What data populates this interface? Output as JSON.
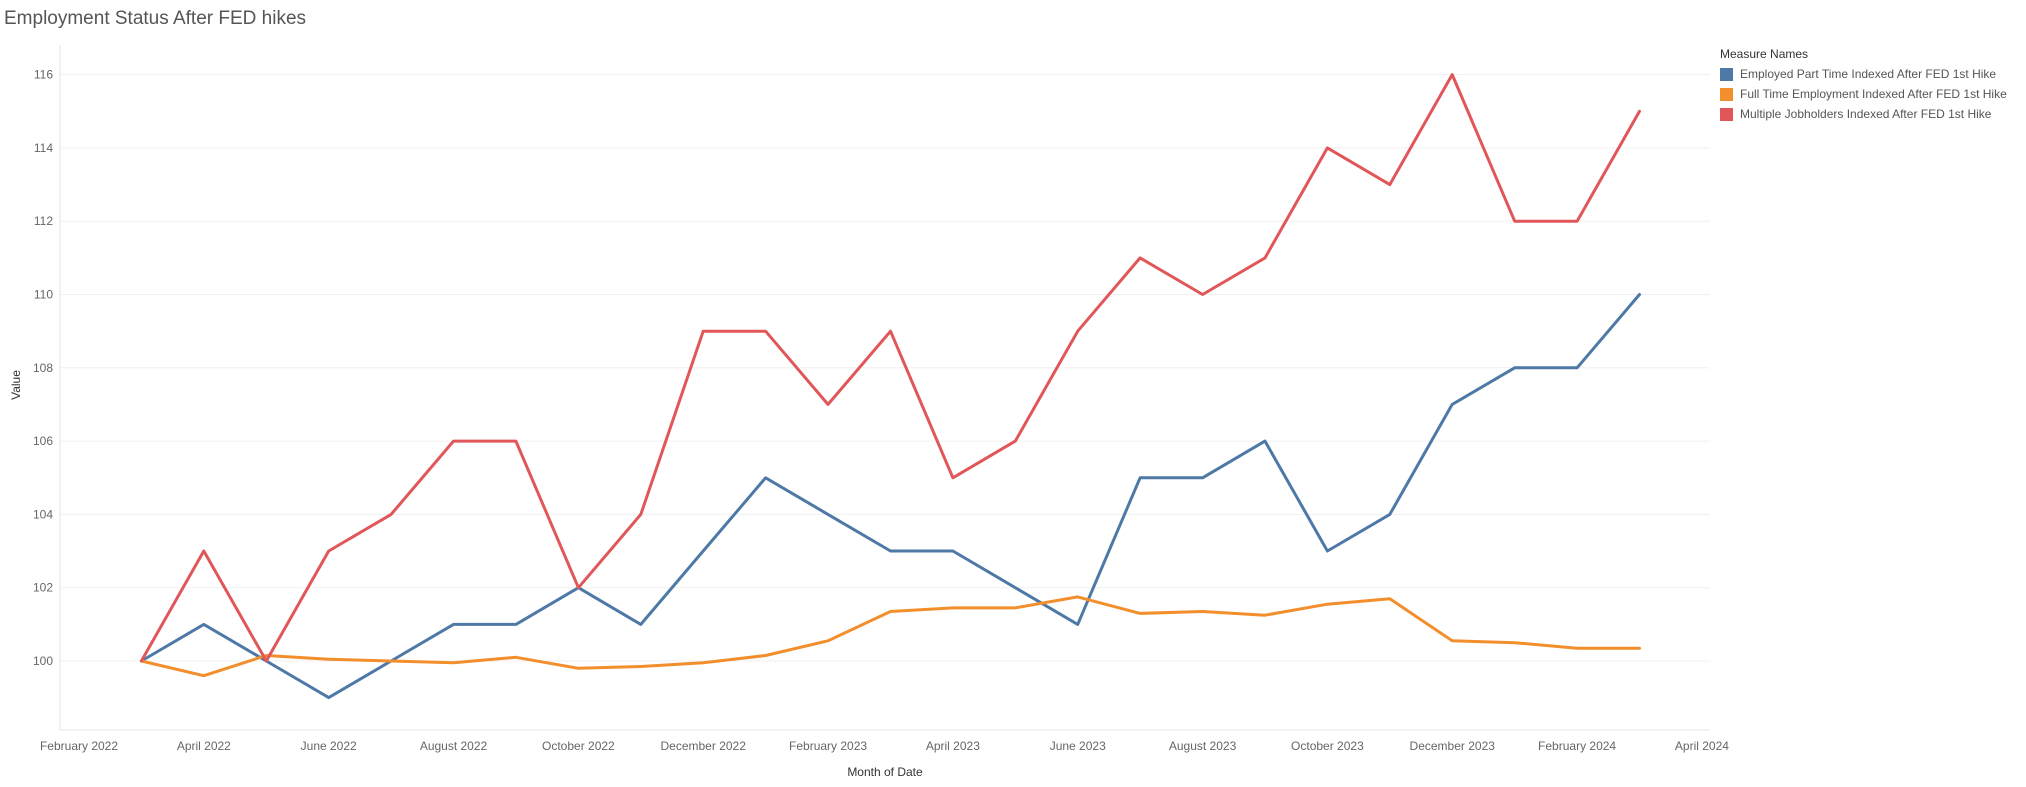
{
  "chart_data": {
    "type": "line",
    "title": "Employment Status After FED hikes",
    "xlabel": "Month of Date",
    "ylabel": "Value",
    "legend_title": "Measure Names",
    "legend_position": "top-right",
    "x_tick_labels": [
      "February 2022",
      "April 2022",
      "June 2022",
      "August 2022",
      "October 2022",
      "December 2022",
      "February 2023",
      "April 2023",
      "June 2023",
      "August 2023",
      "October 2023",
      "December 2023",
      "February 2024",
      "April 2024"
    ],
    "x_tick_index": [
      0,
      2,
      4,
      6,
      8,
      10,
      12,
      14,
      16,
      18,
      20,
      22,
      24,
      26
    ],
    "x": [
      "2022-03",
      "2022-04",
      "2022-05",
      "2022-06",
      "2022-07",
      "2022-08",
      "2022-09",
      "2022-10",
      "2022-11",
      "2022-12",
      "2023-01",
      "2023-02",
      "2023-03",
      "2023-04",
      "2023-05",
      "2023-06",
      "2023-07",
      "2023-08",
      "2023-09",
      "2023-10",
      "2023-11",
      "2023-12",
      "2024-01",
      "2024-02",
      "2024-03"
    ],
    "x_start_index": 1,
    "ylim": [
      98,
      117
    ],
    "y_ticks": [
      100,
      102,
      104,
      106,
      108,
      110,
      112,
      114,
      116
    ],
    "grid": true,
    "series": [
      {
        "name": "Employed Part Time Indexed After FED 1st Hike",
        "color": "#4e79a7",
        "values": [
          100,
          101,
          100,
          99,
          100,
          101,
          101,
          102,
          101,
          103,
          105,
          104,
          103,
          103,
          102,
          101,
          105,
          105,
          106,
          103,
          104,
          107,
          108,
          108,
          110
        ]
      },
      {
        "name": "Full Time  Employment Indexed After FED 1st Hike",
        "color": "#f28e2b",
        "values": [
          100,
          99.6,
          100.15,
          100.05,
          100,
          99.95,
          100.1,
          99.8,
          99.85,
          99.95,
          100.15,
          100.55,
          101.35,
          101.45,
          101.45,
          101.75,
          101.3,
          101.35,
          101.25,
          101.55,
          101.7,
          100.55,
          100.5,
          100.35,
          100.35
        ]
      },
      {
        "name": "Multiple Jobholders Indexed After FED 1st Hike",
        "color": "#e15759",
        "values": [
          100,
          103,
          100,
          103,
          104,
          106,
          106,
          102,
          104,
          109,
          109,
          107,
          109,
          105,
          106,
          109,
          111,
          110,
          111,
          114,
          113,
          116,
          112,
          112,
          115
        ]
      }
    ]
  }
}
